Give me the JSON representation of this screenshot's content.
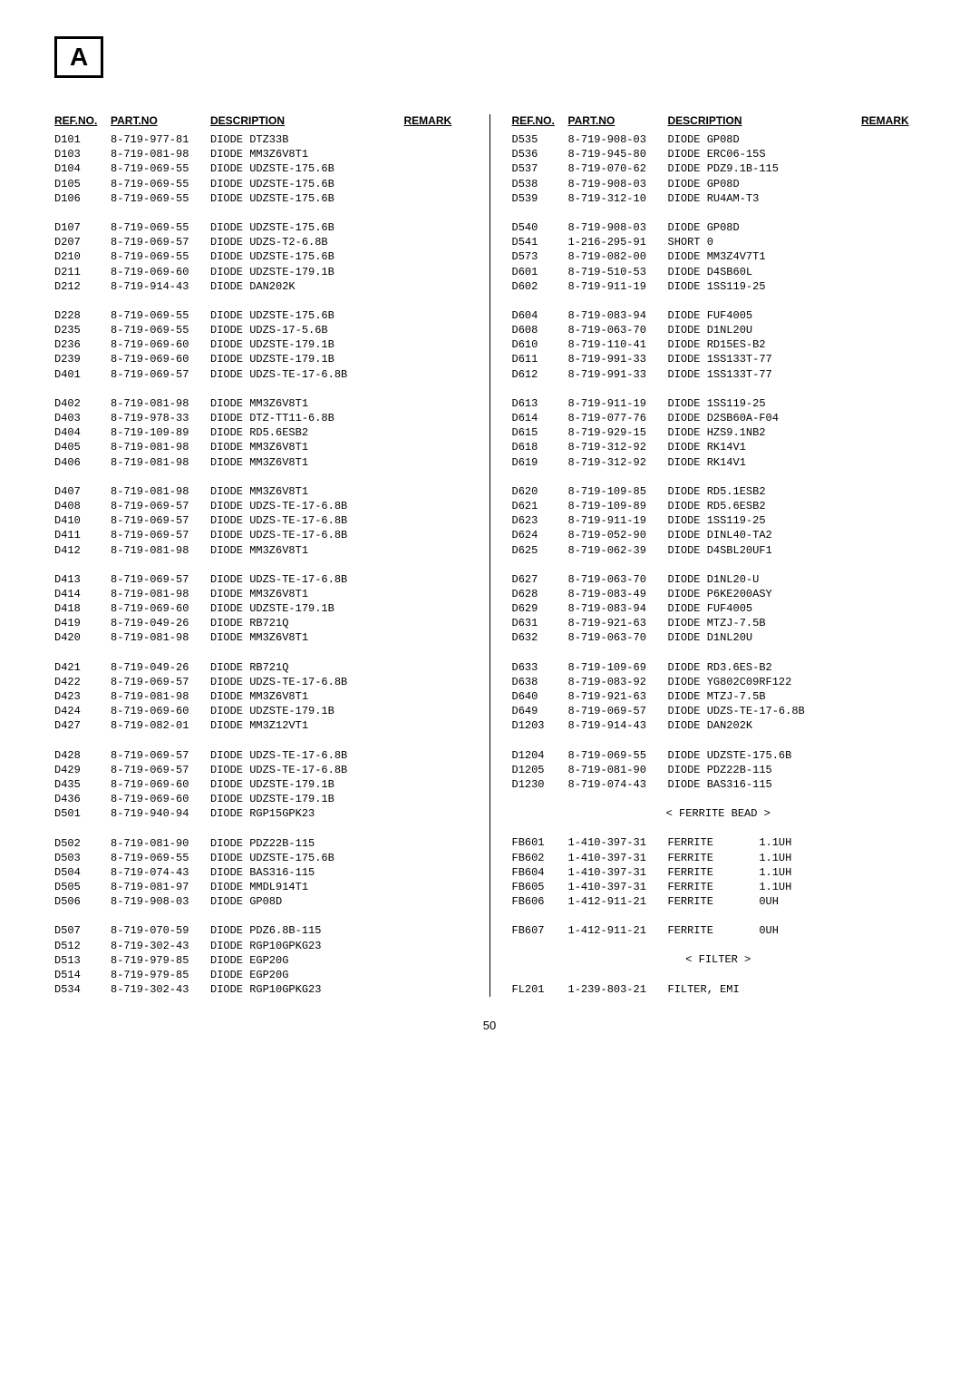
{
  "section_letter": "A",
  "page_number": "50",
  "headers": {
    "ref": "REF.NO.",
    "part": "PART.NO",
    "desc": "DESCRIPTION",
    "remark": "REMARK"
  },
  "sections": {
    "ferrite": "< FERRITE BEAD >",
    "filter": "< FILTER >"
  },
  "left": [
    {
      "ref": "D101",
      "part": "8-719-977-81",
      "desc": "DIODE DTZ33B"
    },
    {
      "ref": "D103",
      "part": "8-719-081-98",
      "desc": "DIODE MM3Z6V8T1"
    },
    {
      "ref": "D104",
      "part": "8-719-069-55",
      "desc": "DIODE UDZSTE-175.6B"
    },
    {
      "ref": "D105",
      "part": "8-719-069-55",
      "desc": "DIODE UDZSTE-175.6B"
    },
    {
      "ref": "D106",
      "part": "8-719-069-55",
      "desc": "DIODE UDZSTE-175.6B"
    },
    {
      "blank": true
    },
    {
      "ref": "D107",
      "part": "8-719-069-55",
      "desc": "DIODE UDZSTE-175.6B"
    },
    {
      "ref": "D207",
      "part": "8-719-069-57",
      "desc": "DIODE UDZS-T2-6.8B"
    },
    {
      "ref": "D210",
      "part": "8-719-069-55",
      "desc": "DIODE UDZSTE-175.6B"
    },
    {
      "ref": "D211",
      "part": "8-719-069-60",
      "desc": "DIODE UDZSTE-179.1B"
    },
    {
      "ref": "D212",
      "part": "8-719-914-43",
      "desc": "DIODE DAN202K"
    },
    {
      "blank": true
    },
    {
      "ref": "D228",
      "part": "8-719-069-55",
      "desc": "DIODE UDZSTE-175.6B"
    },
    {
      "ref": "D235",
      "part": "8-719-069-55",
      "desc": "DIODE UDZS-17-5.6B"
    },
    {
      "ref": "D236",
      "part": "8-719-069-60",
      "desc": "DIODE UDZSTE-179.1B"
    },
    {
      "ref": "D239",
      "part": "8-719-069-60",
      "desc": "DIODE UDZSTE-179.1B"
    },
    {
      "ref": "D401",
      "part": "8-719-069-57",
      "desc": "DIODE UDZS-TE-17-6.8B"
    },
    {
      "blank": true
    },
    {
      "ref": "D402",
      "part": "8-719-081-98",
      "desc": "DIODE MM3Z6V8T1"
    },
    {
      "ref": "D403",
      "part": "8-719-978-33",
      "desc": "DIODE DTZ-TT11-6.8B"
    },
    {
      "ref": "D404",
      "part": "8-719-109-89",
      "desc": "DIODE RD5.6ESB2"
    },
    {
      "ref": "D405",
      "part": "8-719-081-98",
      "desc": "DIODE MM3Z6V8T1"
    },
    {
      "ref": "D406",
      "part": "8-719-081-98",
      "desc": "DIODE MM3Z6V8T1"
    },
    {
      "blank": true
    },
    {
      "ref": "D407",
      "part": "8-719-081-98",
      "desc": "DIODE MM3Z6V8T1"
    },
    {
      "ref": "D408",
      "part": "8-719-069-57",
      "desc": "DIODE UDZS-TE-17-6.8B"
    },
    {
      "ref": "D410",
      "part": "8-719-069-57",
      "desc": "DIODE UDZS-TE-17-6.8B"
    },
    {
      "ref": "D411",
      "part": "8-719-069-57",
      "desc": "DIODE UDZS-TE-17-6.8B"
    },
    {
      "ref": "D412",
      "part": "8-719-081-98",
      "desc": "DIODE MM3Z6V8T1"
    },
    {
      "blank": true
    },
    {
      "ref": "D413",
      "part": "8-719-069-57",
      "desc": "DIODE UDZS-TE-17-6.8B"
    },
    {
      "ref": "D414",
      "part": "8-719-081-98",
      "desc": "DIODE MM3Z6V8T1"
    },
    {
      "ref": "D418",
      "part": "8-719-069-60",
      "desc": "DIODE UDZSTE-179.1B"
    },
    {
      "ref": "D419",
      "part": "8-719-049-26",
      "desc": "DIODE RB721Q"
    },
    {
      "ref": "D420",
      "part": "8-719-081-98",
      "desc": "DIODE MM3Z6V8T1"
    },
    {
      "blank": true
    },
    {
      "ref": "D421",
      "part": "8-719-049-26",
      "desc": "DIODE RB721Q"
    },
    {
      "ref": "D422",
      "part": "8-719-069-57",
      "desc": "DIODE UDZS-TE-17-6.8B"
    },
    {
      "ref": "D423",
      "part": "8-719-081-98",
      "desc": "DIODE MM3Z6V8T1"
    },
    {
      "ref": "D424",
      "part": "8-719-069-60",
      "desc": "DIODE UDZSTE-179.1B"
    },
    {
      "ref": "D427",
      "part": "8-719-082-01",
      "desc": "DIODE MM3Z12VT1"
    },
    {
      "blank": true
    },
    {
      "ref": "D428",
      "part": "8-719-069-57",
      "desc": "DIODE UDZS-TE-17-6.8B"
    },
    {
      "ref": "D429",
      "part": "8-719-069-57",
      "desc": "DIODE UDZS-TE-17-6.8B"
    },
    {
      "ref": "D435",
      "part": "8-719-069-60",
      "desc": "DIODE UDZSTE-179.1B"
    },
    {
      "ref": "D436",
      "part": "8-719-069-60",
      "desc": "DIODE UDZSTE-179.1B"
    },
    {
      "ref": "D501",
      "part": "8-719-940-94",
      "desc": "DIODE RGP15GPK23"
    },
    {
      "blank": true
    },
    {
      "ref": "D502",
      "part": "8-719-081-90",
      "desc": "DIODE PDZ22B-115"
    },
    {
      "ref": "D503",
      "part": "8-719-069-55",
      "desc": "DIODE UDZSTE-175.6B"
    },
    {
      "ref": "D504",
      "part": "8-719-074-43",
      "desc": "DIODE BAS316-115"
    },
    {
      "ref": "D505",
      "part": "8-719-081-97",
      "desc": "DIODE MMDL914T1"
    },
    {
      "ref": "D506",
      "part": "8-719-908-03",
      "desc": "DIODE GP08D"
    },
    {
      "blank": true
    },
    {
      "ref": "D507",
      "part": "8-719-070-59",
      "desc": "DIODE PDZ6.8B-115"
    },
    {
      "ref": "D512",
      "part": "8-719-302-43",
      "desc": "DIODE RGP10GPKG23"
    },
    {
      "ref": "D513",
      "part": "8-719-979-85",
      "desc": "DIODE EGP20G"
    },
    {
      "ref": "D514",
      "part": "8-719-979-85",
      "desc": "DIODE EGP20G"
    },
    {
      "ref": "D534",
      "part": "8-719-302-43",
      "desc": "DIODE RGP10GPKG23"
    }
  ],
  "right": [
    {
      "ref": "D535",
      "part": "8-719-908-03",
      "desc": "DIODE GP08D"
    },
    {
      "ref": "D536",
      "part": "8-719-945-80",
      "desc": "DIODE ERC06-15S"
    },
    {
      "ref": "D537",
      "part": "8-719-070-62",
      "desc": "DIODE PDZ9.1B-115"
    },
    {
      "ref": "D538",
      "part": "8-719-908-03",
      "desc": "DIODE GP08D"
    },
    {
      "ref": "D539",
      "part": "8-719-312-10",
      "desc": "DIODE RU4AM-T3"
    },
    {
      "blank": true
    },
    {
      "ref": "D540",
      "part": "8-719-908-03",
      "desc": "DIODE GP08D"
    },
    {
      "ref": "D541",
      "part": "1-216-295-91",
      "desc": "SHORT 0"
    },
    {
      "ref": "D573",
      "part": "8-719-082-00",
      "desc": "DIODE MM3Z4V7T1"
    },
    {
      "ref": "D601",
      "part": "8-719-510-53",
      "desc": "DIODE D4SB60L"
    },
    {
      "ref": "D602",
      "part": "8-719-911-19",
      "desc": "DIODE 1SS119-25"
    },
    {
      "blank": true
    },
    {
      "ref": "D604",
      "part": "8-719-083-94",
      "desc": "DIODE FUF4005"
    },
    {
      "ref": "D608",
      "part": "8-719-063-70",
      "desc": "DIODE D1NL20U"
    },
    {
      "ref": "D610",
      "part": "8-719-110-41",
      "desc": "DIODE RD15ES-B2"
    },
    {
      "ref": "D611",
      "part": "8-719-991-33",
      "desc": "DIODE 1SS133T-77"
    },
    {
      "ref": "D612",
      "part": "8-719-991-33",
      "desc": "DIODE 1SS133T-77"
    },
    {
      "blank": true
    },
    {
      "ref": "D613",
      "part": "8-719-911-19",
      "desc": "DIODE 1SS119-25"
    },
    {
      "ref": "D614",
      "part": "8-719-077-76",
      "desc": "DIODE D2SB60A-F04"
    },
    {
      "ref": "D615",
      "part": "8-719-929-15",
      "desc": "DIODE HZS9.1NB2"
    },
    {
      "ref": "D618",
      "part": "8-719-312-92",
      "desc": "DIODE RK14V1"
    },
    {
      "ref": "D619",
      "part": "8-719-312-92",
      "desc": "DIODE RK14V1"
    },
    {
      "blank": true
    },
    {
      "ref": "D620",
      "part": "8-719-109-85",
      "desc": "DIODE RD5.1ESB2"
    },
    {
      "ref": "D621",
      "part": "8-719-109-89",
      "desc": "DIODE RD5.6ESB2"
    },
    {
      "ref": "D623",
      "part": "8-719-911-19",
      "desc": "DIODE 1SS119-25"
    },
    {
      "ref": "D624",
      "part": "8-719-052-90",
      "desc": "DIODE DINL40-TA2"
    },
    {
      "ref": "D625",
      "part": "8-719-062-39",
      "desc": "DIODE D4SBL20UF1"
    },
    {
      "blank": true
    },
    {
      "ref": "D627",
      "part": "8-719-063-70",
      "desc": "DIODE D1NL20-U"
    },
    {
      "ref": "D628",
      "part": "8-719-083-49",
      "desc": "DIODE P6KE200ASY"
    },
    {
      "ref": "D629",
      "part": "8-719-083-94",
      "desc": "DIODE FUF4005"
    },
    {
      "ref": "D631",
      "part": "8-719-921-63",
      "desc": "DIODE MTZJ-7.5B"
    },
    {
      "ref": "D632",
      "part": "8-719-063-70",
      "desc": "DIODE D1NL20U"
    },
    {
      "blank": true
    },
    {
      "ref": "D633",
      "part": "8-719-109-69",
      "desc": "DIODE RD3.6ES-B2"
    },
    {
      "ref": "D638",
      "part": "8-719-083-92",
      "desc": "DIODE YG802C09RF122"
    },
    {
      "ref": "D640",
      "part": "8-719-921-63",
      "desc": "DIODE MTZJ-7.5B"
    },
    {
      "ref": "D649",
      "part": "8-719-069-57",
      "desc": "DIODE UDZS-TE-17-6.8B"
    },
    {
      "ref": "D1203",
      "part": "8-719-914-43",
      "desc": "DIODE DAN202K"
    },
    {
      "blank": true
    },
    {
      "ref": "D1204",
      "part": "8-719-069-55",
      "desc": "DIODE UDZSTE-175.6B"
    },
    {
      "ref": "D1205",
      "part": "8-719-081-90",
      "desc": "DIODE PDZ22B-115"
    },
    {
      "ref": "D1230",
      "part": "8-719-074-43",
      "desc": "DIODE BAS316-115"
    },
    {
      "blank": true
    },
    {
      "section": "ferrite"
    },
    {
      "blank": true
    },
    {
      "ref": "FB601",
      "part": "1-410-397-31",
      "desc": "FERRITE       1.1UH"
    },
    {
      "ref": "FB602",
      "part": "1-410-397-31",
      "desc": "FERRITE       1.1UH"
    },
    {
      "ref": "FB604",
      "part": "1-410-397-31",
      "desc": "FERRITE       1.1UH"
    },
    {
      "ref": "FB605",
      "part": "1-410-397-31",
      "desc": "FERRITE       1.1UH"
    },
    {
      "ref": "FB606",
      "part": "1-412-911-21",
      "desc": "FERRITE       0UH"
    },
    {
      "blank": true
    },
    {
      "ref": "FB607",
      "part": "1-412-911-21",
      "desc": "FERRITE       0UH"
    },
    {
      "blank": true
    },
    {
      "section": "filter"
    },
    {
      "blank": true
    },
    {
      "ref": "FL201",
      "part": "1-239-803-21",
      "desc": "FILTER, EMI"
    }
  ]
}
